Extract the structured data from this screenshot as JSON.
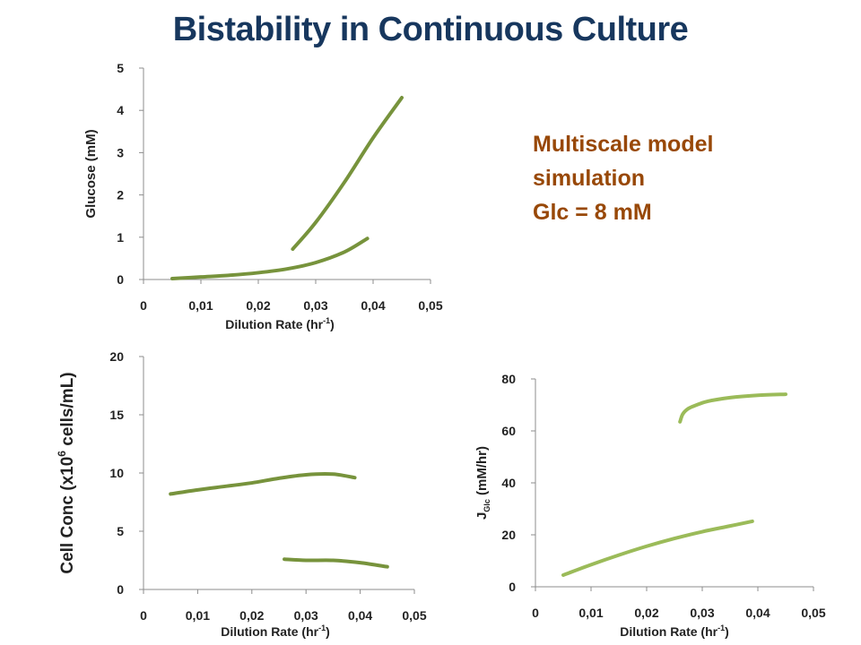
{
  "title": "Bistability in Continuous Culture",
  "note": {
    "line1": "Multiscale model",
    "line2": "simulation",
    "line3": "Glc = 8 mM"
  },
  "colors": {
    "title": "#17375e",
    "note": "#984807",
    "series_dark": "#77933c",
    "series_light": "#9bbb59",
    "axis": "#8c8c8c"
  },
  "chart_data": [
    {
      "type": "line",
      "xlabel": "Dilution Rate (hr-1)",
      "xlabel_main": "Dilution Rate (hr",
      "xlabel_sup": "-1",
      "xlabel_end": ")",
      "ylabel": "Glucose (mM)",
      "xlim": [
        0,
        0.05
      ],
      "ylim": [
        0,
        5
      ],
      "xticks": [
        "0",
        "0,01",
        "0,02",
        "0,03",
        "0,04",
        "0,05"
      ],
      "yticks": [
        "0",
        "1",
        "2",
        "3",
        "4",
        "5"
      ],
      "series": [
        {
          "x": [
            0.005,
            0.01,
            0.015,
            0.02,
            0.025,
            0.03,
            0.035,
            0.039
          ],
          "y": [
            0.02,
            0.06,
            0.1,
            0.16,
            0.25,
            0.4,
            0.65,
            0.97
          ]
        },
        {
          "x": [
            0.026,
            0.03,
            0.035,
            0.04,
            0.045
          ],
          "y": [
            0.72,
            1.35,
            2.3,
            3.35,
            4.3
          ]
        }
      ]
    },
    {
      "type": "line",
      "xlabel": "Dilution Rate (hr-1)",
      "xlabel_main": "Dilution Rate (hr",
      "xlabel_sup": "-1",
      "xlabel_end": ")",
      "ylabel": "Cell Conc (x106 cells/mL)",
      "ylabel_pre": "Cell Conc (x10",
      "ylabel_sup": "6",
      "ylabel_post": " cells/mL)",
      "xlim": [
        0,
        0.05
      ],
      "ylim": [
        0,
        20
      ],
      "xticks": [
        "0",
        "0,01",
        "0,02",
        "0,03",
        "0,04",
        "0,05"
      ],
      "yticks": [
        "0",
        "5",
        "10",
        "15",
        "20"
      ],
      "series": [
        {
          "x": [
            0.005,
            0.01,
            0.015,
            0.02,
            0.025,
            0.03,
            0.035,
            0.039
          ],
          "y": [
            8.2,
            8.55,
            8.85,
            9.15,
            9.55,
            9.85,
            9.9,
            9.6
          ]
        },
        {
          "x": [
            0.026,
            0.03,
            0.035,
            0.04,
            0.045
          ],
          "y": [
            2.6,
            2.5,
            2.5,
            2.3,
            1.95
          ]
        }
      ]
    },
    {
      "type": "line",
      "xlabel": "Dilution Rate (hr-1)",
      "xlabel_main": "Dilution Rate (hr",
      "xlabel_sup": "-1",
      "xlabel_end": ")",
      "ylabel": "JGlc (mM/hr)",
      "ylabel_pre": "J",
      "ylabel_sub": "Glc",
      "ylabel_post": " (mM/hr)",
      "xlim": [
        0,
        0.05
      ],
      "ylim": [
        0,
        80
      ],
      "xticks": [
        "0",
        "0,01",
        "0,02",
        "0,03",
        "0,04",
        "0,05"
      ],
      "yticks": [
        "0",
        "20",
        "40",
        "60",
        "80"
      ],
      "series": [
        {
          "x": [
            0.005,
            0.01,
            0.015,
            0.02,
            0.025,
            0.03,
            0.035,
            0.039
          ],
          "y": [
            4.5,
            8.5,
            12.2,
            15.6,
            18.6,
            21.2,
            23.4,
            25.2
          ]
        },
        {
          "x": [
            0.026,
            0.0265,
            0.0275,
            0.029,
            0.031,
            0.035,
            0.04,
            0.045
          ],
          "y": [
            63.5,
            66.5,
            68.6,
            70.0,
            71.4,
            72.8,
            73.7,
            74.1
          ]
        }
      ]
    }
  ]
}
